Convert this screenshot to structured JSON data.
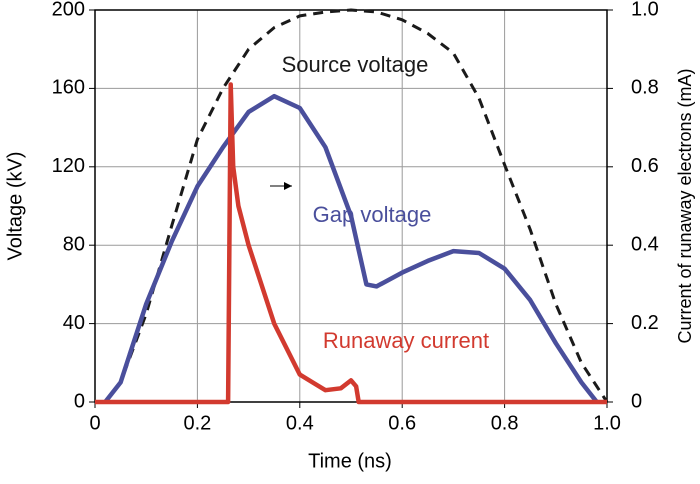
{
  "chart_data": {
    "type": "line",
    "xlabel": "Time (ns)",
    "ylabel": "Voltage (kV)",
    "y2label": "Current of runaway electrons (mA)",
    "xlim": [
      0,
      1
    ],
    "xticks": [
      0,
      0.2,
      0.4,
      0.6,
      0.8,
      {
        "value": 1,
        "label": "1.0"
      }
    ],
    "ylim": [
      0,
      200
    ],
    "yticks": [
      0,
      40,
      80,
      120,
      160,
      200
    ],
    "y2lim": [
      0,
      1
    ],
    "y2ticks": [
      0,
      0.2,
      0.4,
      0.6,
      0.8,
      {
        "value": 1,
        "label": "1.0"
      }
    ],
    "grid": true,
    "annotations": [
      "Source voltage",
      "Gap voltage",
      "Runaway current"
    ],
    "series": [
      {
        "name": "Source voltage",
        "color": "#1a1a1a",
        "dashed": true,
        "x": [
          0.02,
          0.05,
          0.1,
          0.15,
          0.2,
          0.25,
          0.3,
          0.35,
          0.4,
          0.45,
          0.5,
          0.55,
          0.6,
          0.65,
          0.7,
          0.75,
          0.8,
          0.85,
          0.9,
          0.95,
          1.0
        ],
        "values": [
          0,
          10,
          45,
          90,
          134,
          160,
          180,
          191,
          197,
          199,
          200,
          199,
          195,
          188,
          178,
          155,
          121,
          88,
          50,
          20,
          0
        ]
      },
      {
        "name": "Gap voltage",
        "color": "#4a4f9c",
        "x": [
          0.02,
          0.05,
          0.1,
          0.15,
          0.2,
          0.25,
          0.3,
          0.35,
          0.4,
          0.45,
          0.5,
          0.53,
          0.55,
          0.6,
          0.65,
          0.7,
          0.75,
          0.8,
          0.85,
          0.9,
          0.95,
          0.98
        ],
        "values": [
          0,
          10,
          50,
          82,
          110,
          130,
          148,
          156,
          150,
          130,
          95,
          60,
          59,
          66,
          72,
          77,
          76,
          68,
          52,
          30,
          10,
          0
        ]
      },
      {
        "name": "Runaway current",
        "color": "#d23a2f",
        "axis": "y2",
        "x": [
          0,
          0.26,
          0.265,
          0.27,
          0.28,
          0.3,
          0.35,
          0.4,
          0.45,
          0.48,
          0.5,
          0.51,
          0.515,
          1.0
        ],
        "values": [
          0,
          0,
          0.81,
          0.6,
          0.5,
          0.4,
          0.2,
          0.07,
          0.03,
          0.035,
          0.055,
          0.04,
          0,
          0
        ]
      }
    ]
  }
}
